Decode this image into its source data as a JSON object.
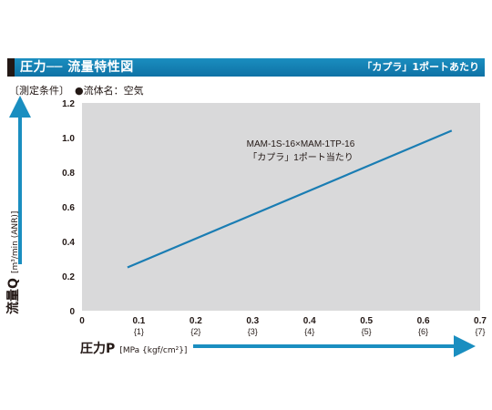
{
  "header": {
    "title": "圧力── 流量特性図",
    "note": "「カプラ」1ポートあたり"
  },
  "conditions": {
    "label": "〔測定条件〕",
    "item": "●流体名：空気"
  },
  "axes": {
    "y_label": "流量Q",
    "y_unit": "[m³/min (ANR)]",
    "x_label": "圧力P",
    "x_unit": "[MPa {kgf/cm²}]"
  },
  "colors": {
    "accent": "#1a8ec0",
    "plot_bg": "#d9d9da",
    "line": "#1a7db3"
  },
  "chart_data": {
    "type": "line",
    "x_ticks": [
      "0",
      "0.1",
      "0.2",
      "0.3",
      "0.4",
      "0.5",
      "0.6",
      "0.7"
    ],
    "x_ticks_secondary": [
      "",
      "{1}",
      "{2}",
      "{3}",
      "{4}",
      "{5}",
      "{6}",
      "{7}"
    ],
    "y_ticks": [
      "0",
      "0.2",
      "0.4",
      "0.6",
      "0.8",
      "1.0",
      "1.2"
    ],
    "xlim": [
      0,
      0.7
    ],
    "ylim": [
      0,
      1.2
    ],
    "grid": false,
    "series": [
      {
        "name": "MAM-1S-16×MAM-1TP-16",
        "x": [
          0.08,
          0.65
        ],
        "y": [
          0.25,
          1.04
        ]
      }
    ],
    "annotation": [
      "MAM-1S-16×MAM-1TP-16",
      "「カプラ」1ポート当たり"
    ]
  }
}
